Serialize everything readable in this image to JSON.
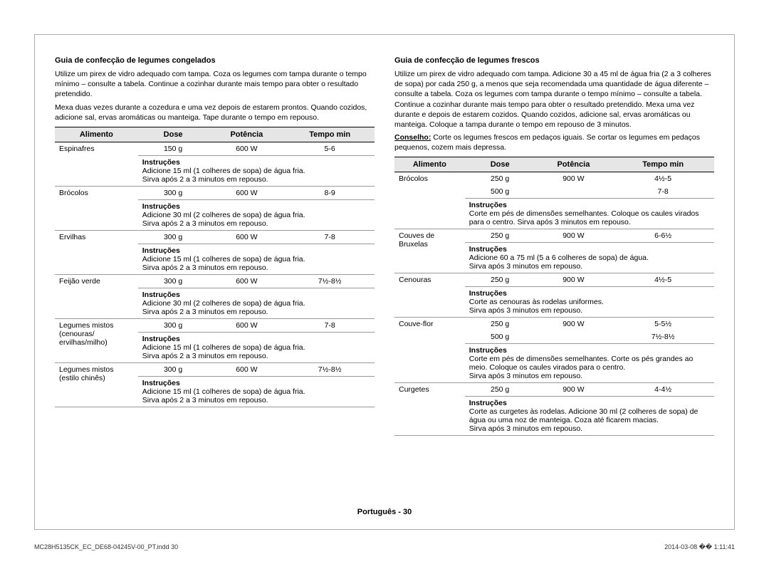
{
  "left": {
    "title": "Guia de confecção de legumes congelados",
    "para1": "Utilize um pirex de vidro adequado com tampa. Coza os legumes com tampa durante o tempo mínimo – consulte a tabela. Continue a cozinhar durante mais tempo para obter o resultado pretendido.",
    "para2": "Mexa duas vezes durante a cozedura e uma vez depois de estarem prontos. Quando cozidos, adicione sal, ervas aromáticas ou manteiga. Tape durante o tempo em repouso.",
    "headers": {
      "food": "Alimento",
      "dose": "Dose",
      "power": "Potência",
      "time": "Tempo min"
    },
    "rows": [
      {
        "food": "Espinafres",
        "dose": "150 g",
        "power": "600 W",
        "time": "5-6",
        "instr": "Adicione 15 ml (1 colheres de sopa) de água fria.\nSirva após 2 a 3 minutos em repouso."
      },
      {
        "food": "Brócolos",
        "dose": "300 g",
        "power": "600 W",
        "time": "8-9",
        "instr": "Adicione 30 ml (2 colheres de sopa) de água fria.\nSirva após 2 a 3 minutos em repouso."
      },
      {
        "food": "Ervilhas",
        "dose": "300 g",
        "power": "600 W",
        "time": "7-8",
        "instr": "Adicione 15 ml (1 colheres de sopa) de água fria.\nSirva após 2 a 3 minutos em repouso."
      },
      {
        "food": "Feijão verde",
        "dose": "300 g",
        "power": "600 W",
        "time": "7½-8½",
        "instr": "Adicione 30 ml (2 colheres de sopa) de água fria.\nSirva após 2 a 3 minutos em repouso."
      },
      {
        "food": "Legumes mistos (cenouras/ ervilhas/milho)",
        "dose": "300 g",
        "power": "600 W",
        "time": "7-8",
        "instr": "Adicione 15 ml (1 colheres de sopa) de água fria.\nSirva após 2 a 3 minutos em repouso."
      },
      {
        "food": "Legumes mistos (estilo chinês)",
        "dose": "300 g",
        "power": "600 W",
        "time": "7½-8½",
        "instr": "Adicione 15 ml (1 colheres de sopa) de água fria.\nSirva após 2 a 3 minutos em repouso."
      }
    ],
    "instr_label": "Instruções"
  },
  "right": {
    "title": "Guia de confecção de legumes frescos",
    "para1": "Utilize um pirex de vidro adequado com tampa. Adicione 30 a 45 ml de água fria (2 a 3 colheres de sopa) por cada 250 g, a menos que seja recomendada uma quantidade de água diferente – consulte a tabela. Coza os legumes com tampa durante o tempo mínimo – consulte a tabela. Continue a cozinhar durante mais tempo para obter o resultado pretendido. Mexa uma vez durante e depois de estarem cozidos. Quando cozidos, adicione sal, ervas aromáticas ou manteiga. Coloque a tampa durante o tempo em repouso de 3 minutos.",
    "tip_label": "Conselho:",
    "tip_text": " Corte os legumes frescos em pedaços iguais. Se cortar os legumes em pedaços pequenos, cozem mais depressa.",
    "headers": {
      "food": "Alimento",
      "dose": "Dose",
      "power": "Potência",
      "time": "Tempo min"
    },
    "rows": [
      {
        "food": "Brócolos",
        "dose": "250 g\n500 g",
        "power": "900 W",
        "time": "4½-5\n7-8",
        "instr": "Corte em pés de dimensões semelhantes. Coloque os caules virados para o centro. Sirva após 3 minutos em repouso."
      },
      {
        "food": "Couves de Bruxelas",
        "dose": "250 g",
        "power": "900 W",
        "time": "6-6½",
        "instr": "Adicione 60 a 75 ml (5 a 6 colheres de sopa) de água.\nSirva após 3 minutos em repouso."
      },
      {
        "food": "Cenouras",
        "dose": "250 g",
        "power": "900 W",
        "time": "4½-5",
        "instr": "Corte as cenouras às rodelas uniformes.\nSirva após 3 minutos em repouso."
      },
      {
        "food": "Couve-flor",
        "dose": "250 g\n500 g",
        "power": "900 W",
        "time": "5-5½\n7½-8½",
        "instr": "Corte em pés de dimensões semelhantes. Corte os pés grandes ao meio. Coloque os caules virados para o centro.\nSirva após 3 minutos em repouso."
      },
      {
        "food": "Curgetes",
        "dose": "250 g",
        "power": "900 W",
        "time": "4-4½",
        "instr": "Corte as curgetes às rodelas. Adicione 30 ml (2 colheres de sopa) de água ou uma noz de manteiga. Coza até ficarem macias.\nSirva após 3 minutos em repouso."
      }
    ],
    "instr_label": "Instruções"
  },
  "page_number": "Português - 30",
  "footer_left": "MC28H5135CK_EC_DE68-04245V-00_PT.indd   30",
  "footer_right": "2014-03-08   �� 1:11:41"
}
